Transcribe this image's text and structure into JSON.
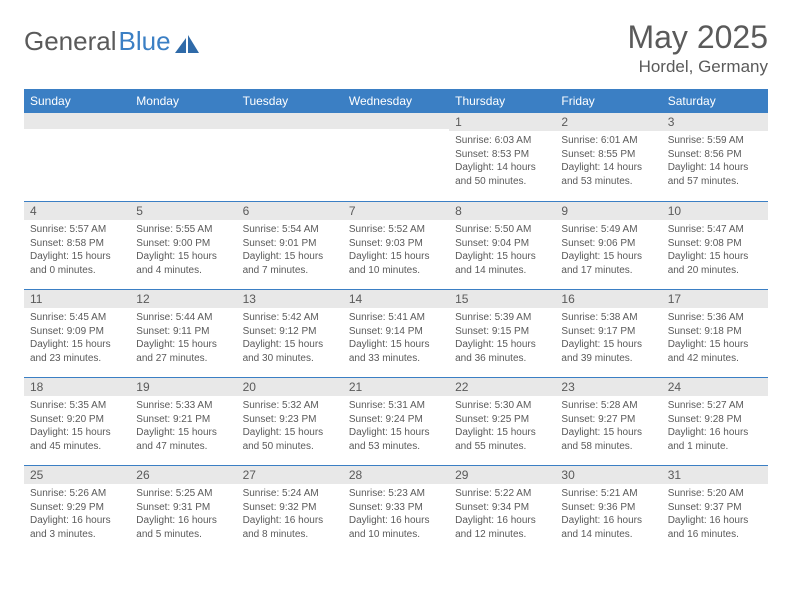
{
  "brand": {
    "part1": "General",
    "part2": "Blue",
    "text_color": "#5a5a5a",
    "accent_color": "#3b7fc4"
  },
  "title": "May 2025",
  "location": "Hordel, Germany",
  "colors": {
    "header_bg": "#3b7fc4",
    "header_text": "#ffffff",
    "daynum_bg": "#e8e8e8",
    "text": "#5a5a5a",
    "divider": "#3b7fc4",
    "page_bg": "#ffffff"
  },
  "weekdays": [
    "Sunday",
    "Monday",
    "Tuesday",
    "Wednesday",
    "Thursday",
    "Friday",
    "Saturday"
  ],
  "weeks": [
    [
      null,
      null,
      null,
      null,
      {
        "n": "1",
        "sunrise": "6:03 AM",
        "sunset": "8:53 PM",
        "daylight": "14 hours and 50 minutes."
      },
      {
        "n": "2",
        "sunrise": "6:01 AM",
        "sunset": "8:55 PM",
        "daylight": "14 hours and 53 minutes."
      },
      {
        "n": "3",
        "sunrise": "5:59 AM",
        "sunset": "8:56 PM",
        "daylight": "14 hours and 57 minutes."
      }
    ],
    [
      {
        "n": "4",
        "sunrise": "5:57 AM",
        "sunset": "8:58 PM",
        "daylight": "15 hours and 0 minutes."
      },
      {
        "n": "5",
        "sunrise": "5:55 AM",
        "sunset": "9:00 PM",
        "daylight": "15 hours and 4 minutes."
      },
      {
        "n": "6",
        "sunrise": "5:54 AM",
        "sunset": "9:01 PM",
        "daylight": "15 hours and 7 minutes."
      },
      {
        "n": "7",
        "sunrise": "5:52 AM",
        "sunset": "9:03 PM",
        "daylight": "15 hours and 10 minutes."
      },
      {
        "n": "8",
        "sunrise": "5:50 AM",
        "sunset": "9:04 PM",
        "daylight": "15 hours and 14 minutes."
      },
      {
        "n": "9",
        "sunrise": "5:49 AM",
        "sunset": "9:06 PM",
        "daylight": "15 hours and 17 minutes."
      },
      {
        "n": "10",
        "sunrise": "5:47 AM",
        "sunset": "9:08 PM",
        "daylight": "15 hours and 20 minutes."
      }
    ],
    [
      {
        "n": "11",
        "sunrise": "5:45 AM",
        "sunset": "9:09 PM",
        "daylight": "15 hours and 23 minutes."
      },
      {
        "n": "12",
        "sunrise": "5:44 AM",
        "sunset": "9:11 PM",
        "daylight": "15 hours and 27 minutes."
      },
      {
        "n": "13",
        "sunrise": "5:42 AM",
        "sunset": "9:12 PM",
        "daylight": "15 hours and 30 minutes."
      },
      {
        "n": "14",
        "sunrise": "5:41 AM",
        "sunset": "9:14 PM",
        "daylight": "15 hours and 33 minutes."
      },
      {
        "n": "15",
        "sunrise": "5:39 AM",
        "sunset": "9:15 PM",
        "daylight": "15 hours and 36 minutes."
      },
      {
        "n": "16",
        "sunrise": "5:38 AM",
        "sunset": "9:17 PM",
        "daylight": "15 hours and 39 minutes."
      },
      {
        "n": "17",
        "sunrise": "5:36 AM",
        "sunset": "9:18 PM",
        "daylight": "15 hours and 42 minutes."
      }
    ],
    [
      {
        "n": "18",
        "sunrise": "5:35 AM",
        "sunset": "9:20 PM",
        "daylight": "15 hours and 45 minutes."
      },
      {
        "n": "19",
        "sunrise": "5:33 AM",
        "sunset": "9:21 PM",
        "daylight": "15 hours and 47 minutes."
      },
      {
        "n": "20",
        "sunrise": "5:32 AM",
        "sunset": "9:23 PM",
        "daylight": "15 hours and 50 minutes."
      },
      {
        "n": "21",
        "sunrise": "5:31 AM",
        "sunset": "9:24 PM",
        "daylight": "15 hours and 53 minutes."
      },
      {
        "n": "22",
        "sunrise": "5:30 AM",
        "sunset": "9:25 PM",
        "daylight": "15 hours and 55 minutes."
      },
      {
        "n": "23",
        "sunrise": "5:28 AM",
        "sunset": "9:27 PM",
        "daylight": "15 hours and 58 minutes."
      },
      {
        "n": "24",
        "sunrise": "5:27 AM",
        "sunset": "9:28 PM",
        "daylight": "16 hours and 1 minute."
      }
    ],
    [
      {
        "n": "25",
        "sunrise": "5:26 AM",
        "sunset": "9:29 PM",
        "daylight": "16 hours and 3 minutes."
      },
      {
        "n": "26",
        "sunrise": "5:25 AM",
        "sunset": "9:31 PM",
        "daylight": "16 hours and 5 minutes."
      },
      {
        "n": "27",
        "sunrise": "5:24 AM",
        "sunset": "9:32 PM",
        "daylight": "16 hours and 8 minutes."
      },
      {
        "n": "28",
        "sunrise": "5:23 AM",
        "sunset": "9:33 PM",
        "daylight": "16 hours and 10 minutes."
      },
      {
        "n": "29",
        "sunrise": "5:22 AM",
        "sunset": "9:34 PM",
        "daylight": "16 hours and 12 minutes."
      },
      {
        "n": "30",
        "sunrise": "5:21 AM",
        "sunset": "9:36 PM",
        "daylight": "16 hours and 14 minutes."
      },
      {
        "n": "31",
        "sunrise": "5:20 AM",
        "sunset": "9:37 PM",
        "daylight": "16 hours and 16 minutes."
      }
    ]
  ],
  "labels": {
    "sunrise": "Sunrise: ",
    "sunset": "Sunset: ",
    "daylight": "Daylight: "
  }
}
